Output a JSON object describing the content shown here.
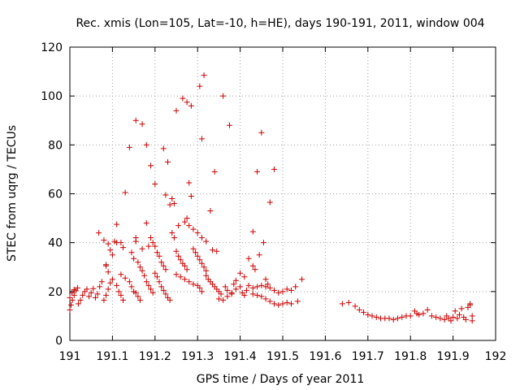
{
  "chart_data": {
    "type": "scatter",
    "title": "Rec. xmis (Lon=105, Lat=-10, h=HE), days 190-191, 2011, window 004",
    "xlabel": "GPS time / Days of year 2011",
    "ylabel": "STEC from uqrg / TECUs",
    "xlim": [
      191,
      192
    ],
    "ylim": [
      0,
      120
    ],
    "xticks": [
      191,
      191.1,
      191.2,
      191.3,
      191.4,
      191.5,
      191.6,
      191.7,
      191.8,
      191.9,
      192
    ],
    "xtick_labels": [
      "191",
      "191.1",
      "191.2",
      "191.3",
      "191.4",
      "191.5",
      "191.6",
      "191.7",
      "191.8",
      "191.9",
      "192"
    ],
    "yticks": [
      0,
      20,
      40,
      60,
      80,
      100,
      120
    ],
    "ytick_labels": [
      "0",
      "20",
      "40",
      "60",
      "80",
      "100",
      "120"
    ],
    "grid": true,
    "marker": "plus",
    "color": "#cc0000",
    "points": [
      [
        191.0,
        12.5
      ],
      [
        191.003,
        14.5
      ],
      [
        191.006,
        16.5
      ],
      [
        191.01,
        18.5
      ],
      [
        191.014,
        20.3
      ],
      [
        191.018,
        21.5
      ],
      [
        191.0,
        17.5
      ],
      [
        191.005,
        19.5
      ],
      [
        191.01,
        20.8
      ],
      [
        191.02,
        15.0
      ],
      [
        191.025,
        16.5
      ],
      [
        191.03,
        18.5
      ],
      [
        191.035,
        20.0
      ],
      [
        191.04,
        21.0
      ],
      [
        191.045,
        18.0
      ],
      [
        191.05,
        19.5
      ],
      [
        191.055,
        21.2
      ],
      [
        191.06,
        17.5
      ],
      [
        191.065,
        19.0
      ],
      [
        191.07,
        22.0
      ],
      [
        191.075,
        24.0
      ],
      [
        191.08,
        16.5
      ],
      [
        191.085,
        18.5
      ],
      [
        191.09,
        21.0
      ],
      [
        191.095,
        23.5
      ],
      [
        191.068,
        44.0
      ],
      [
        191.08,
        41.0
      ],
      [
        191.09,
        39.5
      ],
      [
        191.095,
        37.0
      ],
      [
        191.1,
        35.0
      ],
      [
        191.105,
        40.5
      ],
      [
        191.11,
        40.0
      ],
      [
        191.11,
        47.5
      ],
      [
        191.085,
        31.0
      ],
      [
        191.09,
        28.0
      ],
      [
        191.1,
        25.0
      ],
      [
        191.11,
        22.5
      ],
      [
        191.115,
        20.0
      ],
      [
        191.12,
        18.5
      ],
      [
        191.125,
        16.5
      ],
      [
        191.085,
        30.5
      ],
      [
        191.12,
        40.0
      ],
      [
        191.125,
        38.0
      ],
      [
        191.13,
        60.5
      ],
      [
        191.14,
        79.0
      ],
      [
        191.145,
        36.0
      ],
      [
        191.15,
        33.5
      ],
      [
        191.155,
        42.0
      ],
      [
        191.155,
        40.5
      ],
      [
        191.12,
        27.0
      ],
      [
        191.13,
        25.5
      ],
      [
        191.14,
        24.0
      ],
      [
        191.145,
        22.0
      ],
      [
        191.15,
        20.0
      ],
      [
        191.155,
        19.5
      ],
      [
        191.16,
        18.0
      ],
      [
        191.165,
        16.5
      ],
      [
        191.155,
        90.0
      ],
      [
        191.17,
        88.5
      ],
      [
        191.18,
        80.0
      ],
      [
        191.19,
        71.5
      ],
      [
        191.2,
        64.0
      ],
      [
        191.17,
        37.5
      ],
      [
        191.18,
        48.0
      ],
      [
        191.185,
        38.5
      ],
      [
        191.16,
        32.0
      ],
      [
        191.165,
        30.0
      ],
      [
        191.17,
        28.5
      ],
      [
        191.175,
        26.5
      ],
      [
        191.18,
        24.0
      ],
      [
        191.185,
        22.5
      ],
      [
        191.19,
        21.0
      ],
      [
        191.195,
        19.5
      ],
      [
        191.19,
        42.0
      ],
      [
        191.195,
        40.0
      ],
      [
        191.2,
        38.5
      ],
      [
        191.205,
        36.0
      ],
      [
        191.21,
        34.5
      ],
      [
        191.215,
        32.0
      ],
      [
        191.22,
        30.5
      ],
      [
        191.225,
        29.0
      ],
      [
        191.2,
        27.5
      ],
      [
        191.205,
        26.0
      ],
      [
        191.21,
        24.0
      ],
      [
        191.215,
        22.0
      ],
      [
        191.22,
        20.5
      ],
      [
        191.225,
        19.0
      ],
      [
        191.23,
        17.5
      ],
      [
        191.235,
        16.5
      ],
      [
        191.22,
        78.5
      ],
      [
        191.225,
        59.5
      ],
      [
        191.23,
        73.0
      ],
      [
        191.235,
        55.5
      ],
      [
        191.24,
        58.0
      ],
      [
        191.245,
        56.0
      ],
      [
        191.25,
        94.0
      ],
      [
        191.255,
        47.0
      ],
      [
        191.24,
        44.0
      ],
      [
        191.245,
        42.0
      ],
      [
        191.25,
        36.5
      ],
      [
        191.255,
        34.5
      ],
      [
        191.26,
        33.0
      ],
      [
        191.265,
        31.5
      ],
      [
        191.27,
        30.5
      ],
      [
        191.275,
        29.0
      ],
      [
        191.265,
        99.0
      ],
      [
        191.275,
        97.5
      ],
      [
        191.285,
        96.0
      ],
      [
        191.28,
        64.5
      ],
      [
        191.275,
        50.0
      ],
      [
        191.27,
        48.5
      ],
      [
        191.28,
        47.0
      ],
      [
        191.29,
        45.5
      ],
      [
        191.25,
        27.0
      ],
      [
        191.26,
        26.0
      ],
      [
        191.27,
        25.0
      ],
      [
        191.28,
        24.0
      ],
      [
        191.29,
        23.0
      ],
      [
        191.3,
        22.5
      ],
      [
        191.305,
        21.5
      ],
      [
        191.31,
        20.0
      ],
      [
        191.285,
        59.0
      ],
      [
        191.29,
        37.5
      ],
      [
        191.295,
        36.0
      ],
      [
        191.3,
        34.5
      ],
      [
        191.305,
        33.0
      ],
      [
        191.31,
        31.5
      ],
      [
        191.315,
        30.0
      ],
      [
        191.32,
        28.5
      ],
      [
        191.305,
        104.0
      ],
      [
        191.315,
        108.5
      ],
      [
        191.31,
        82.5
      ],
      [
        191.3,
        44.0
      ],
      [
        191.31,
        42.0
      ],
      [
        191.32,
        40.5
      ],
      [
        191.33,
        53.0
      ],
      [
        191.335,
        37.0
      ],
      [
        191.32,
        26.5
      ],
      [
        191.325,
        25.0
      ],
      [
        191.33,
        24.0
      ],
      [
        191.335,
        23.0
      ],
      [
        191.34,
        22.0
      ],
      [
        191.345,
        21.0
      ],
      [
        191.35,
        20.0
      ],
      [
        191.355,
        19.0
      ],
      [
        191.34,
        69.0
      ],
      [
        191.345,
        36.5
      ],
      [
        191.35,
        17.0
      ],
      [
        191.36,
        100.0
      ],
      [
        191.365,
        22.0
      ],
      [
        191.37,
        20.5
      ],
      [
        191.375,
        88.0
      ],
      [
        191.38,
        19.0
      ],
      [
        191.36,
        16.5
      ],
      [
        191.37,
        18.0
      ],
      [
        191.38,
        19.5
      ],
      [
        191.39,
        21.0
      ],
      [
        191.4,
        22.0
      ],
      [
        191.405,
        19.5
      ],
      [
        191.41,
        18.5
      ],
      [
        191.415,
        20.5
      ],
      [
        191.385,
        23.0
      ],
      [
        191.39,
        24.5
      ],
      [
        191.4,
        27.5
      ],
      [
        191.41,
        26.0
      ],
      [
        191.42,
        33.5
      ],
      [
        191.43,
        30.5
      ],
      [
        191.435,
        29.0
      ],
      [
        191.43,
        44.5
      ],
      [
        191.44,
        69.0
      ],
      [
        191.445,
        35.0
      ],
      [
        191.45,
        85.0
      ],
      [
        191.455,
        40.0
      ],
      [
        191.46,
        25.0
      ],
      [
        191.465,
        23.0
      ],
      [
        191.47,
        56.5
      ],
      [
        191.48,
        70.0
      ],
      [
        191.42,
        22.5
      ],
      [
        191.43,
        21.5
      ],
      [
        191.44,
        22.0
      ],
      [
        191.45,
        22.5
      ],
      [
        191.46,
        22.0
      ],
      [
        191.47,
        21.5
      ],
      [
        191.48,
        20.5
      ],
      [
        191.49,
        19.5
      ],
      [
        191.43,
        19.0
      ],
      [
        191.44,
        18.5
      ],
      [
        191.45,
        18.0
      ],
      [
        191.46,
        17.0
      ],
      [
        191.47,
        16.0
      ],
      [
        191.48,
        15.0
      ],
      [
        191.49,
        14.5
      ],
      [
        191.5,
        15.0
      ],
      [
        191.5,
        20.0
      ],
      [
        191.51,
        21.0
      ],
      [
        191.52,
        20.5
      ],
      [
        191.53,
        22.0
      ],
      [
        191.51,
        15.5
      ],
      [
        191.52,
        15.0
      ],
      [
        191.535,
        16.0
      ],
      [
        191.545,
        25.0
      ],
      [
        191.64,
        15.0
      ],
      [
        191.655,
        15.5
      ],
      [
        191.67,
        14.0
      ],
      [
        191.68,
        12.5
      ],
      [
        191.69,
        11.5
      ],
      [
        191.7,
        10.5
      ],
      [
        191.71,
        10.0
      ],
      [
        191.72,
        9.5
      ],
      [
        191.73,
        9.0
      ],
      [
        191.74,
        9.0
      ],
      [
        191.75,
        9.0
      ],
      [
        191.76,
        8.5
      ],
      [
        191.77,
        9.0
      ],
      [
        191.78,
        9.5
      ],
      [
        191.79,
        10.0
      ],
      [
        191.8,
        10.0
      ],
      [
        191.81,
        12.0
      ],
      [
        191.815,
        11.0
      ],
      [
        191.82,
        10.5
      ],
      [
        191.83,
        11.0
      ],
      [
        191.84,
        12.5
      ],
      [
        191.85,
        10.0
      ],
      [
        191.86,
        9.5
      ],
      [
        191.87,
        9.0
      ],
      [
        191.88,
        8.5
      ],
      [
        191.885,
        10.0
      ],
      [
        191.89,
        9.0
      ],
      [
        191.895,
        8.0
      ],
      [
        191.9,
        9.5
      ],
      [
        191.905,
        12.0
      ],
      [
        191.91,
        9.0
      ],
      [
        191.915,
        10.5
      ],
      [
        191.92,
        13.0
      ],
      [
        191.925,
        9.5
      ],
      [
        191.93,
        8.5
      ],
      [
        191.935,
        13.5
      ],
      [
        191.94,
        14.5
      ],
      [
        191.945,
        10.0
      ],
      [
        191.945,
        8.0
      ],
      [
        191.94,
        15.0
      ]
    ]
  }
}
